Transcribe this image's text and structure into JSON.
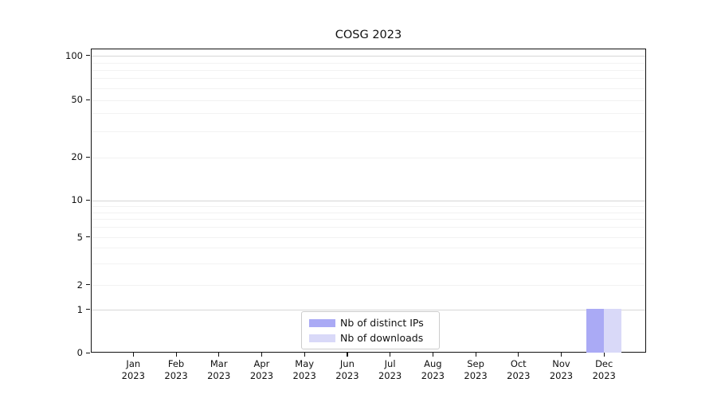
{
  "chart_data": {
    "type": "bar",
    "title": "COSG 2023",
    "categories": [
      {
        "month": "Jan",
        "year": "2023"
      },
      {
        "month": "Feb",
        "year": "2023"
      },
      {
        "month": "Mar",
        "year": "2023"
      },
      {
        "month": "Apr",
        "year": "2023"
      },
      {
        "month": "May",
        "year": "2023"
      },
      {
        "month": "Jun",
        "year": "2023"
      },
      {
        "month": "Jul",
        "year": "2023"
      },
      {
        "month": "Aug",
        "year": "2023"
      },
      {
        "month": "Sep",
        "year": "2023"
      },
      {
        "month": "Oct",
        "year": "2023"
      },
      {
        "month": "Nov",
        "year": "2023"
      },
      {
        "month": "Dec",
        "year": "2023"
      }
    ],
    "series": [
      {
        "name": "Nb of distinct IPs",
        "color": "#aaaaf5",
        "values": [
          0,
          0,
          0,
          0,
          0,
          0,
          0,
          0,
          0,
          0,
          0,
          1
        ]
      },
      {
        "name": "Nb of downloads",
        "color": "#d9d9f8",
        "values": [
          0,
          0,
          0,
          0,
          0,
          0,
          0,
          0,
          0,
          0,
          0,
          1
        ]
      }
    ],
    "y_axis": {
      "scale": "symlog",
      "tick_values": [
        0,
        1,
        2,
        5,
        10,
        20,
        50,
        100
      ],
      "tick_labels": [
        "0",
        "1",
        "2",
        "5",
        "10",
        "20",
        "50",
        "100"
      ],
      "range": [
        0,
        110
      ]
    },
    "x_axis": {
      "tick_count": 12
    },
    "legend": {
      "position": "lower center",
      "entries": [
        "Nb of distinct IPs",
        "Nb of downloads"
      ]
    },
    "grid": true
  }
}
